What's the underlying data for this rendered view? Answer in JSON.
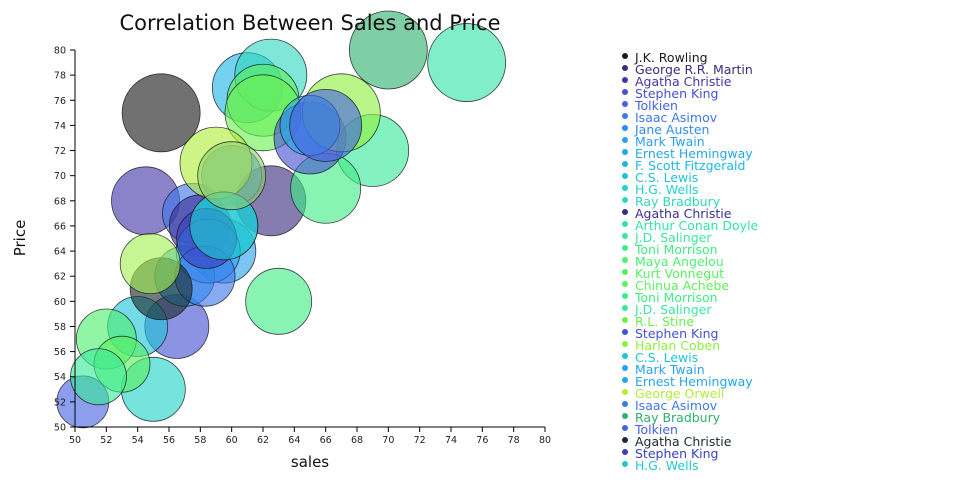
{
  "chart_data": {
    "type": "scatter",
    "title": "Correlation Between Sales and Price",
    "xlabel": "sales",
    "ylabel": "Price",
    "xlim": [
      50,
      80
    ],
    "ylim": [
      50,
      80
    ],
    "xticks": [
      "50",
      "52",
      "54",
      "56",
      "58",
      "60",
      "62",
      "64",
      "66",
      "68",
      "70",
      "72",
      "74",
      "76",
      "78",
      "80"
    ],
    "yticks": [
      "50",
      "52",
      "54",
      "56",
      "58",
      "60",
      "62",
      "64",
      "66",
      "68",
      "70",
      "72",
      "74",
      "76",
      "78",
      "80"
    ],
    "grid": false,
    "legend_position": "right",
    "series": [
      {
        "name": "J.K. Rowling",
        "color": "#1a1a1a",
        "x": 55.5,
        "y": 75,
        "size": 39
      },
      {
        "name": "George R.R. Martin",
        "color": "#3a2d80",
        "x": 62.5,
        "y": 68,
        "size": 35
      },
      {
        "name": "Agatha Christie",
        "color": "#4237a8",
        "x": 54.5,
        "y": 68,
        "size": 34
      },
      {
        "name": "Stephen King",
        "color": "#4650d2",
        "x": 56.5,
        "y": 58,
        "size": 32
      },
      {
        "name": "Tolkien",
        "color": "#4563e0",
        "x": 50.5,
        "y": 52,
        "size": 26
      },
      {
        "name": "Isaac Asimov",
        "color": "#3d78ec",
        "x": 57.5,
        "y": 67,
        "size": 30
      },
      {
        "name": "Jane Austen",
        "color": "#2e8cf0",
        "x": 60,
        "y": 70,
        "size": 30
      },
      {
        "name": "Mark Twain",
        "color": "#2a9ff0",
        "x": 59.5,
        "y": 64,
        "size": 32
      },
      {
        "name": "Ernest Hemingway",
        "color": "#24a8ec",
        "x": 57,
        "y": 62,
        "size": 30
      },
      {
        "name": "F. Scott Fitzgerald",
        "color": "#1eb6e6",
        "x": 61,
        "y": 77,
        "size": 35
      },
      {
        "name": "C.S. Lewis",
        "color": "#1ec4d8",
        "x": 54,
        "y": 58,
        "size": 30
      },
      {
        "name": "H.G. Wells",
        "color": "#22d2c8",
        "x": 55,
        "y": 53,
        "size": 32
      },
      {
        "name": "Ray Bradbury",
        "color": "#2ed8be",
        "x": 62.5,
        "y": 78,
        "size": 36
      },
      {
        "name": "Agatha Christie",
        "color": "#3a2d90",
        "x": 58,
        "y": 66,
        "size": 31
      },
      {
        "name": "Arthur Conan Doyle",
        "color": "#30e4a8",
        "x": 75,
        "y": 79,
        "size": 39
      },
      {
        "name": "J.D. Salinger",
        "color": "#38e89a",
        "x": 69,
        "y": 72,
        "size": 36
      },
      {
        "name": "Toni Morrison",
        "color": "#40ec86",
        "x": 63,
        "y": 60,
        "size": 33
      },
      {
        "name": "Maya Angelou",
        "color": "#4cf070",
        "x": 52,
        "y": 57,
        "size": 30
      },
      {
        "name": "Kurt Vonnegut",
        "color": "#58f060",
        "x": 53,
        "y": 55,
        "size": 28
      },
      {
        "name": "Chinua Achebe",
        "color": "#5ef05e",
        "x": 62,
        "y": 76,
        "size": 36
      },
      {
        "name": "Toni Morrison",
        "color": "#40ec86",
        "x": 66,
        "y": 69,
        "size": 35
      },
      {
        "name": "J.D. Salinger",
        "color": "#38e89a",
        "x": 51.5,
        "y": 54,
        "size": 28
      },
      {
        "name": "R.L. Stine",
        "color": "#6cf050",
        "x": 62,
        "y": 75,
        "size": 38
      },
      {
        "name": "Stephen King",
        "color": "#4650d2",
        "x": 65,
        "y": 73,
        "size": 36
      },
      {
        "name": "Harlan Coben",
        "color": "#8ef040",
        "x": 67,
        "y": 75,
        "size": 39
      },
      {
        "name": "C.S. Lewis",
        "color": "#1ec4d8",
        "x": 59.5,
        "y": 66,
        "size": 34
      },
      {
        "name": "Mark Twain",
        "color": "#2a9ff0",
        "x": 58.5,
        "y": 64,
        "size": 32
      },
      {
        "name": "Ernest Hemingway",
        "color": "#24a8ec",
        "x": 65,
        "y": 74,
        "size": 30
      },
      {
        "name": "George Orwell",
        "color": "#b0ee3c",
        "x": 59,
        "y": 71,
        "size": 36
      },
      {
        "name": "Isaac Asimov",
        "color": "#3d78ec",
        "x": 58.3,
        "y": 62,
        "size": 30
      },
      {
        "name": "Ray Bradbury",
        "color": "#2eb070",
        "x": 70,
        "y": 80,
        "size": 39
      },
      {
        "name": "Tolkien",
        "color": "#4563e0",
        "x": 66,
        "y": 74,
        "size": 36
      },
      {
        "name": "Agatha Christie",
        "color": "#1a2a2a",
        "x": 55.5,
        "y": 61,
        "size": 31
      },
      {
        "name": "Stephen King",
        "color": "#3a40c0",
        "x": 58.4,
        "y": 65,
        "size": 30
      },
      {
        "name": "H.G. Wells",
        "color": "#22c8d0",
        "x": 59.5,
        "y": 66,
        "size": 34
      }
    ],
    "extra_points": [
      {
        "color": "#a0f050",
        "x": 54.8,
        "y": 63,
        "size": 30
      },
      {
        "color": "#90d070",
        "x": 60,
        "y": 70,
        "size": 34
      }
    ]
  }
}
